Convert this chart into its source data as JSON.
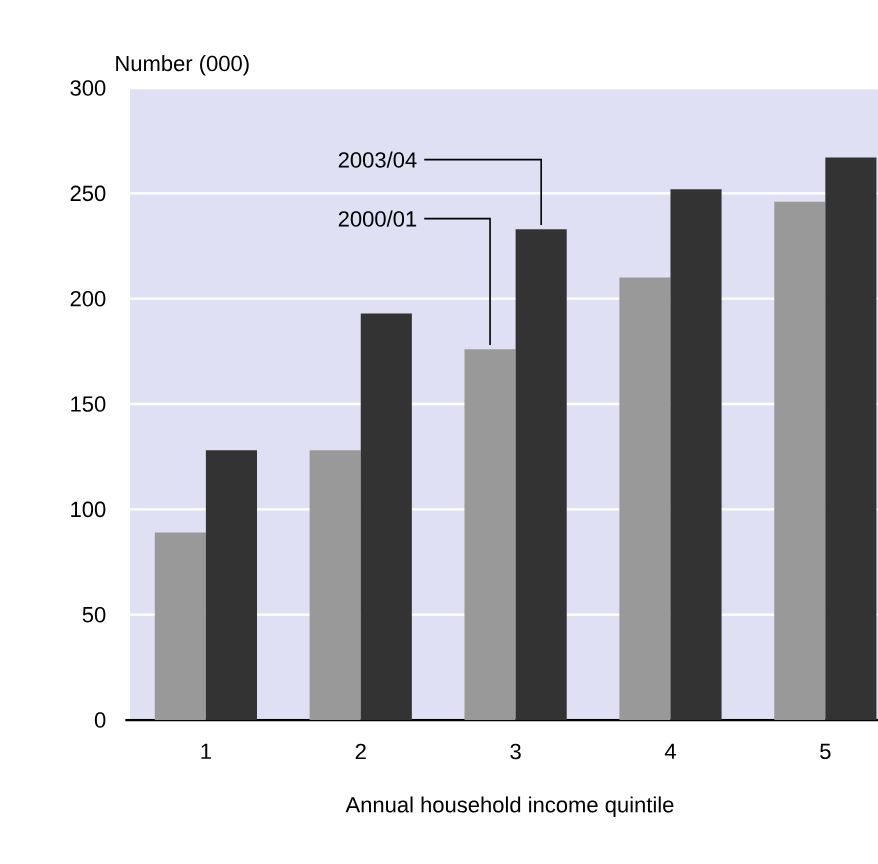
{
  "chart_data": {
    "type": "bar",
    "ylabel": "Number (000)",
    "xlabel": "Annual household income quintile",
    "categories": [
      "1",
      "2",
      "3",
      "4",
      "5"
    ],
    "series": [
      {
        "name": "2000/01",
        "color": "#999999",
        "values": [
          89,
          128,
          176,
          210,
          246
        ]
      },
      {
        "name": "2003/04",
        "color": "#333333",
        "values": [
          128,
          193,
          233,
          252,
          267
        ]
      }
    ],
    "ylim": [
      0,
      300
    ],
    "yticks": [
      0,
      50,
      100,
      150,
      200,
      250,
      300
    ],
    "grid": "y"
  }
}
